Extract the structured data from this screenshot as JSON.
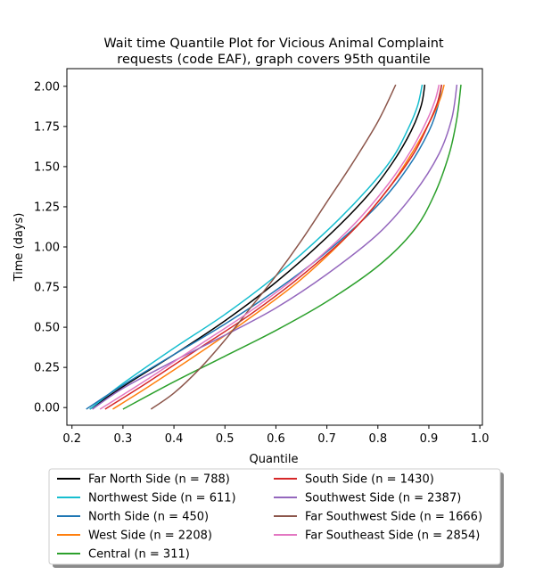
{
  "chart_data": {
    "type": "line",
    "title_line1": "Wait time Quantile Plot for Vicious Animal Complaint",
    "title_line2": "requests (code EAF), graph covers 95th quantile",
    "xlabel": "Quantile",
    "ylabel": "Time (days)",
    "xlim": [
      0.19,
      1.005
    ],
    "ylim": [
      -0.11,
      2.11
    ],
    "xticks": [
      0.2,
      0.3,
      0.4,
      0.5,
      0.6,
      0.7,
      0.8,
      0.9,
      1.0
    ],
    "xtick_labels": [
      "0.2",
      "0.3",
      "0.4",
      "0.5",
      "0.6",
      "0.7",
      "0.8",
      "0.9",
      "1.0"
    ],
    "yticks": [
      0.0,
      0.25,
      0.5,
      0.75,
      1.0,
      1.25,
      1.5,
      1.75,
      2.0
    ],
    "ytick_labels": [
      "0.00",
      "0.25",
      "0.50",
      "0.75",
      "1.00",
      "1.25",
      "1.50",
      "1.75",
      "2.00"
    ],
    "legend_position": "below-plot",
    "series": [
      {
        "name": "Far North Side (n = 788)",
        "color": "#000000",
        "x": [
          0.235,
          0.3,
          0.4,
          0.5,
          0.6,
          0.7,
          0.78,
          0.83,
          0.865,
          0.885,
          0.892
        ],
        "y": [
          -0.01,
          0.13,
          0.33,
          0.54,
          0.78,
          1.06,
          1.32,
          1.53,
          1.72,
          1.88,
          2.01
        ]
      },
      {
        "name": "Northwest Side (n = 611)",
        "color": "#17becf",
        "x": [
          0.235,
          0.3,
          0.4,
          0.5,
          0.6,
          0.7,
          0.78,
          0.83,
          0.86,
          0.878,
          0.887
        ],
        "y": [
          -0.01,
          0.15,
          0.37,
          0.58,
          0.82,
          1.1,
          1.36,
          1.56,
          1.74,
          1.88,
          2.01
        ]
      },
      {
        "name": "North Side (n = 450)",
        "color": "#1f77b4",
        "x": [
          0.228,
          0.3,
          0.4,
          0.5,
          0.6,
          0.7,
          0.8,
          0.86,
          0.9,
          0.918,
          0.925
        ],
        "y": [
          -0.01,
          0.14,
          0.33,
          0.52,
          0.73,
          0.97,
          1.26,
          1.5,
          1.72,
          1.88,
          2.01
        ]
      },
      {
        "name": "West Side (n = 2208)",
        "color": "#ff7f0e",
        "x": [
          0.28,
          0.35,
          0.45,
          0.55,
          0.65,
          0.75,
          0.82,
          0.87,
          0.905,
          0.922,
          0.93
        ],
        "y": [
          -0.01,
          0.13,
          0.34,
          0.56,
          0.8,
          1.1,
          1.36,
          1.6,
          1.8,
          1.92,
          2.01
        ]
      },
      {
        "name": "Central (n = 311)",
        "color": "#2ca02c",
        "x": [
          0.3,
          0.4,
          0.5,
          0.6,
          0.7,
          0.8,
          0.87,
          0.91,
          0.94,
          0.955,
          0.963
        ],
        "y": [
          -0.01,
          0.16,
          0.32,
          0.48,
          0.66,
          0.88,
          1.1,
          1.32,
          1.58,
          1.8,
          2.01
        ]
      },
      {
        "name": "South Side (n = 1430)",
        "color": "#d62728",
        "x": [
          0.265,
          0.35,
          0.45,
          0.55,
          0.65,
          0.75,
          0.82,
          0.87,
          0.9,
          0.917,
          0.925
        ],
        "y": [
          -0.01,
          0.16,
          0.37,
          0.58,
          0.82,
          1.1,
          1.36,
          1.58,
          1.77,
          1.9,
          2.01
        ]
      },
      {
        "name": "Southwest Side (n = 2387)",
        "color": "#9467bd",
        "x": [
          0.24,
          0.3,
          0.4,
          0.5,
          0.6,
          0.7,
          0.8,
          0.87,
          0.92,
          0.945,
          0.955
        ],
        "y": [
          -0.01,
          0.12,
          0.29,
          0.45,
          0.62,
          0.83,
          1.08,
          1.33,
          1.58,
          1.8,
          2.01
        ]
      },
      {
        "name": "Far Southwest Side (n = 1666)",
        "color": "#8c564b",
        "x": [
          0.355,
          0.4,
          0.45,
          0.5,
          0.55,
          0.6,
          0.65,
          0.7,
          0.75,
          0.8,
          0.835
        ],
        "y": [
          -0.01,
          0.09,
          0.24,
          0.42,
          0.62,
          0.82,
          1.04,
          1.28,
          1.52,
          1.78,
          2.01
        ]
      },
      {
        "name": "Far Southeast Side (n = 2854)",
        "color": "#e377c2",
        "x": [
          0.255,
          0.35,
          0.45,
          0.55,
          0.65,
          0.75,
          0.82,
          0.865,
          0.895,
          0.912,
          0.92
        ],
        "y": [
          -0.01,
          0.18,
          0.39,
          0.6,
          0.84,
          1.13,
          1.39,
          1.6,
          1.78,
          1.91,
          2.01
        ]
      }
    ]
  }
}
